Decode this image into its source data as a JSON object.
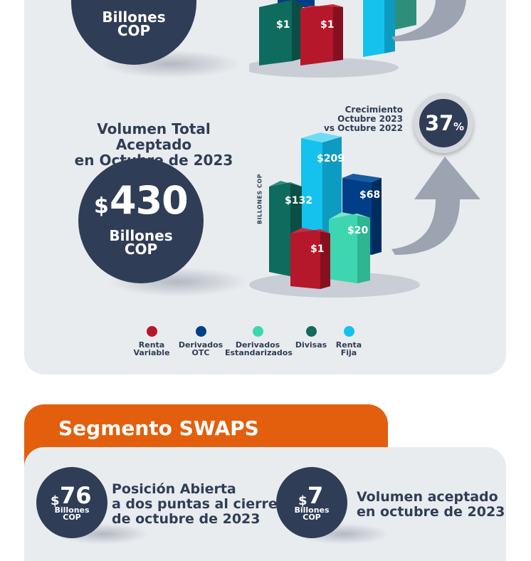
{
  "top_circle": {
    "billones": "Billones",
    "cop": "COP"
  },
  "top_chart": {
    "bars": [
      {
        "label": "$1"
      },
      {
        "label": "$1"
      }
    ]
  },
  "section_title": {
    "line1": "Volumen Total Aceptado",
    "line2": "en Octubre de 2023"
  },
  "main_circle": {
    "currency": "$",
    "value": "430",
    "billones": "Billones",
    "cop": "COP"
  },
  "growth": {
    "line1": "Crecimiento",
    "line2": "Octubre 2023",
    "line3": "vs Octubre 2022",
    "value": "37",
    "unit": "%"
  },
  "chart": {
    "axis_label": "BILLONES COP",
    "bars": [
      {
        "label": "$132",
        "color": "#0f6b5e"
      },
      {
        "label": "$209",
        "color": "#15c2ee"
      },
      {
        "label": "$68",
        "color": "#003f87"
      },
      {
        "label": "$1",
        "color": "#b5172b"
      },
      {
        "label": "$20",
        "color": "#3dd6b0"
      }
    ]
  },
  "legend": [
    {
      "l1": "Renta",
      "l2": "Variable",
      "color": "#b5172b"
    },
    {
      "l1": "Derivados",
      "l2": "OTC",
      "color": "#003f87"
    },
    {
      "l1": "Derivados",
      "l2": "Estandarizados",
      "color": "#3dd6b0"
    },
    {
      "l1": "Divisas",
      "l2": "",
      "color": "#0f6b5e"
    },
    {
      "l1": "Renta",
      "l2": "Fija",
      "color": "#15c2ee"
    }
  ],
  "swaps": {
    "title": "Segmento SWAPS",
    "item1": {
      "currency": "$",
      "value": "76",
      "billones": "Billones",
      "cop": "COP",
      "line1": "Posición Abierta",
      "line2": "a dos puntas al cierre",
      "line3": "de octubre de 2023"
    },
    "item2": {
      "currency": "$",
      "value": "7",
      "billones": "Billones",
      "cop": "COP",
      "line1": "Volumen aceptado",
      "line2": "en octubre de 2023"
    }
  }
}
